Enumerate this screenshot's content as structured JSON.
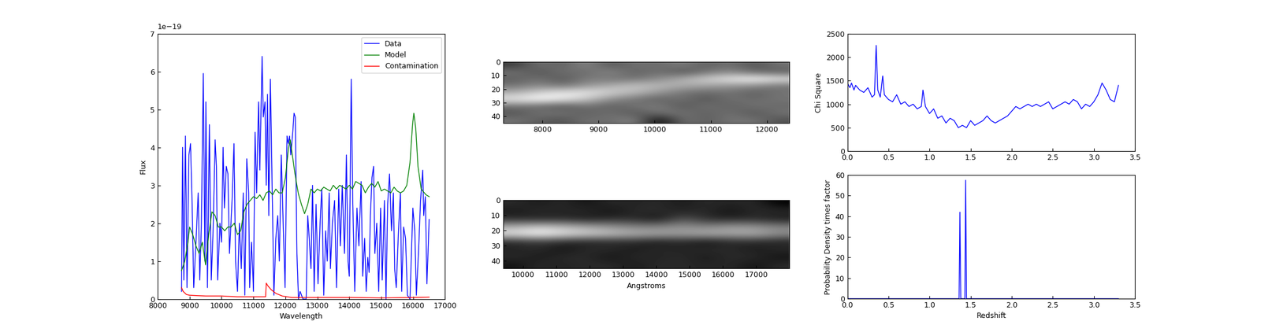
{
  "chart_data": [
    {
      "type": "line",
      "xlabel": "Wavelength",
      "ylabel": "Flux",
      "annotations": [
        {
          "text": "1e−19"
        }
      ],
      "xlim": [
        8000,
        17000
      ],
      "xticks": [
        8000,
        9000,
        10000,
        11000,
        12000,
        13000,
        14000,
        15000,
        16000,
        17000
      ],
      "ylim": [
        0,
        7
      ],
      "yticks": [
        0,
        1,
        2,
        3,
        4,
        5,
        6,
        7
      ],
      "legend": "upper right",
      "series": [
        {
          "name": "Data",
          "color": "#0000ff",
          "x": [
            8750,
            8780,
            8820,
            8870,
            8920,
            8980,
            9030,
            9080,
            9130,
            9200,
            9270,
            9320,
            9370,
            9430,
            9480,
            9510,
            9560,
            9620,
            9680,
            9740,
            9800,
            9840,
            9880,
            9950,
            10000,
            10050,
            10090,
            10150,
            10200,
            10250,
            10330,
            10390,
            10440,
            10500,
            10560,
            10620,
            10680,
            10730,
            10790,
            10850,
            10880,
            10940,
            11000,
            11050,
            11100,
            11160,
            11200,
            11270,
            11310,
            11360,
            11400,
            11440,
            11480,
            11530,
            11580,
            11640,
            11700,
            11760,
            11810,
            11870,
            11930,
            11990,
            12050,
            12090,
            12130,
            12170,
            12230,
            12270,
            12310,
            12360,
            12410,
            12460,
            12550,
            12650,
            12700,
            12760,
            12800,
            12850,
            12900,
            12960,
            13020,
            13090,
            13140,
            13200,
            13260,
            13310,
            13370,
            13410,
            13470,
            13540,
            13600,
            13670,
            13720,
            13780,
            13850,
            13910,
            13960,
            14000,
            14060,
            14110,
            14170,
            14240,
            14300,
            14370,
            14420,
            14480,
            14530,
            14580,
            14620,
            14660,
            14710,
            14760,
            14800,
            14860,
            14920,
            14980,
            15030,
            15100,
            15150,
            15200,
            15260,
            15320,
            15380,
            15420,
            15470,
            15540,
            15600,
            15640,
            15700,
            15760,
            15820,
            15900,
            15990,
            16050,
            16100,
            16170,
            16230,
            16300,
            16330,
            16380,
            16430,
            16500
          ],
          "values": [
            0.2,
            4.0,
            0.5,
            4.3,
            0.3,
            3.8,
            4.1,
            2.5,
            0.3,
            1.5,
            2.8,
            0.5,
            2.0,
            5.95,
            1.0,
            5.2,
            0.3,
            4.6,
            0.5,
            1.9,
            4.2,
            3.5,
            0.5,
            2.0,
            1.5,
            4.0,
            2.4,
            3.5,
            3.3,
            1.2,
            2.6,
            4.1,
            1.0,
            0.2,
            2.0,
            0.8,
            2.8,
            0.1,
            3.7,
            2.8,
            0.3,
            1.5,
            0.2,
            4.4,
            2.8,
            5.2,
            3.4,
            6.4,
            4.8,
            5.2,
            3.0,
            5.4,
            2.2,
            5.8,
            3.2,
            0.1,
            1.6,
            2.2,
            1.0,
            3.8,
            2.0,
            0.3,
            4.3,
            4.1,
            4.3,
            3.8,
            4.4,
            4.9,
            4.8,
            1.2,
            0.0,
            0.2,
            0.0,
            0.0,
            2.2,
            1.4,
            0.8,
            3.0,
            0.2,
            2.5,
            0.4,
            2.1,
            2.9,
            0.1,
            1.8,
            1.0,
            2.8,
            0.8,
            2.0,
            2.6,
            0.3,
            2.9,
            1.4,
            3.0,
            1.2,
            3.8,
            1.0,
            0.6,
            5.8,
            2.5,
            0.2,
            2.4,
            1.4,
            3.1,
            0.6,
            1.6,
            0.2,
            1.1,
            0.7,
            2.2,
            3.2,
            3.5,
            1.2,
            2.0,
            0.2,
            2.4,
            0.5,
            2.6,
            0.0,
            2.5,
            3.3,
            1.8,
            2.8,
            0.8,
            0.3,
            1.8,
            2.8,
            0.2,
            1.9,
            1.6,
            0.1,
            0.0,
            2.4,
            1.8,
            0.1,
            1.3,
            2.6,
            3.4,
            2.2,
            2.7,
            0.4,
            2.1
          ]
        },
        {
          "name": "Model",
          "color": "#008000",
          "x": [
            8750,
            8850,
            8950,
            9000,
            9100,
            9200,
            9300,
            9400,
            9500,
            9600,
            9700,
            9800,
            9900,
            10000,
            10100,
            10200,
            10300,
            10400,
            10500,
            10600,
            10700,
            10800,
            10900,
            11000,
            11100,
            11200,
            11300,
            11400,
            11500,
            11600,
            11700,
            11800,
            11900,
            12000,
            12100,
            12150,
            12200,
            12300,
            12400,
            12500,
            12600,
            12700,
            12800,
            12900,
            13000,
            13100,
            13200,
            13300,
            13400,
            13500,
            13600,
            13700,
            13800,
            13900,
            14000,
            14100,
            14200,
            14300,
            14400,
            14500,
            14600,
            14700,
            14800,
            14900,
            15000,
            15100,
            15200,
            15300,
            15400,
            15500,
            15600,
            15700,
            15800,
            15900,
            15980,
            16020,
            16080,
            16150,
            16250,
            16400,
            16500
          ],
          "values": [
            0.75,
            1.0,
            1.5,
            1.9,
            1.7,
            1.4,
            1.2,
            1.5,
            0.9,
            1.7,
            2.3,
            2.2,
            1.9,
            1.9,
            1.8,
            1.9,
            1.9,
            2.0,
            1.7,
            1.8,
            2.3,
            2.5,
            2.6,
            2.7,
            2.65,
            2.75,
            2.6,
            2.8,
            2.85,
            2.75,
            2.9,
            2.8,
            2.8,
            3.2,
            4.0,
            4.2,
            3.9,
            3.3,
            2.8,
            2.5,
            2.25,
            2.5,
            2.9,
            2.8,
            2.9,
            2.85,
            2.95,
            2.9,
            2.85,
            3.0,
            2.9,
            3.0,
            2.95,
            2.9,
            3.0,
            2.9,
            3.1,
            3.05,
            3.0,
            2.8,
            2.95,
            3.05,
            2.95,
            3.1,
            2.85,
            2.9,
            2.85,
            2.8,
            2.95,
            2.85,
            2.8,
            2.85,
            3.0,
            3.6,
            4.6,
            4.9,
            4.5,
            3.5,
            2.9,
            2.75,
            2.7
          ]
        },
        {
          "name": "Contamination",
          "color": "#ff0000",
          "x": [
            8750,
            8800,
            8900,
            9000,
            9500,
            10000,
            10500,
            11000,
            11380,
            11400,
            11450,
            11550,
            11700,
            11900,
            12200,
            13000,
            14000,
            15000,
            16000,
            16500
          ],
          "values": [
            0.3,
            0.2,
            0.12,
            0.1,
            0.08,
            0.08,
            0.06,
            0.06,
            0.06,
            0.42,
            0.35,
            0.25,
            0.15,
            0.08,
            0.04,
            0.04,
            0.04,
            0.03,
            0.04,
            0.05
          ]
        }
      ]
    },
    {
      "type": "heatmap",
      "xlim": [
        7300,
        12400
      ],
      "xticks": [
        8000,
        9000,
        10000,
        11000,
        12000
      ],
      "ylim": [
        45,
        0
      ],
      "yticks": [
        0,
        10,
        20,
        30,
        40
      ],
      "cells": [
        [
          0.45,
          0.5,
          0.48,
          0.52,
          0.47,
          0.5,
          0.49,
          0.51,
          0.48,
          0.5,
          0.47,
          0.5
        ],
        [
          0.5,
          0.47,
          0.5,
          0.49,
          0.52,
          0.48,
          0.5,
          0.47,
          0.5,
          0.52,
          0.49,
          0.48
        ],
        [
          0.48,
          0.5,
          0.47,
          0.51,
          0.5,
          0.5,
          0.52,
          0.55,
          0.58,
          0.6,
          0.62,
          0.6
        ],
        [
          0.5,
          0.52,
          0.5,
          0.53,
          0.55,
          0.57,
          0.56,
          0.55,
          0.54,
          0.53,
          0.52,
          0.5
        ],
        [
          0.55,
          0.58,
          0.6,
          0.6,
          0.58,
          0.56,
          0.53,
          0.5,
          0.49,
          0.5,
          0.48,
          0.5
        ],
        [
          0.6,
          0.62,
          0.6,
          0.57,
          0.52,
          0.5,
          0.48,
          0.5,
          0.47,
          0.5,
          0.49,
          0.5
        ],
        [
          0.5,
          0.49,
          0.47,
          0.5,
          0.48,
          0.5,
          0.51,
          0.47,
          0.5,
          0.48,
          0.5,
          0.49
        ],
        [
          0.47,
          0.5,
          0.5,
          0.48,
          0.5,
          0.47,
          0.5,
          0.5,
          0.48,
          0.5,
          0.47,
          0.5
        ],
        [
          0.5,
          0.48,
          0.47,
          0.5,
          0.49,
          0.52,
          0.4,
          0.5,
          0.48,
          0.5,
          0.5,
          0.47
        ]
      ]
    },
    {
      "type": "heatmap",
      "xlabel": "Angstroms",
      "xlim": [
        9400,
        18000
      ],
      "xticks": [
        10000,
        11000,
        12000,
        13000,
        14000,
        15000,
        16000,
        17000
      ],
      "ylim": [
        45,
        0
      ],
      "yticks": [
        0,
        10,
        20,
        30,
        40
      ],
      "cells": [
        [
          0.5,
          0.48,
          0.5,
          0.47,
          0.5,
          0.49,
          0.5,
          0.48,
          0.5,
          0.49,
          0.5,
          0.45
        ],
        [
          0.48,
          0.5,
          0.49,
          0.5,
          0.47,
          0.5,
          0.5,
          0.49,
          0.5,
          0.47,
          0.5,
          0.5
        ],
        [
          0.5,
          0.49,
          0.5,
          0.48,
          0.5,
          0.5,
          0.47,
          0.55,
          0.5,
          0.49,
          0.5,
          0.48
        ],
        [
          0.65,
          0.68,
          0.66,
          0.64,
          0.62,
          0.6,
          0.6,
          0.62,
          0.6,
          0.63,
          0.62,
          0.6
        ],
        [
          0.72,
          0.75,
          0.72,
          0.7,
          0.68,
          0.66,
          0.65,
          0.64,
          0.66,
          0.65,
          0.66,
          0.62
        ],
        [
          0.5,
          0.52,
          0.5,
          0.49,
          0.5,
          0.5,
          0.48,
          0.5,
          0.47,
          0.5,
          0.5,
          0.49
        ],
        [
          0.49,
          0.5,
          0.47,
          0.5,
          0.5,
          0.48,
          0.5,
          0.49,
          0.5,
          0.5,
          0.48,
          0.5
        ],
        [
          0.5,
          0.48,
          0.5,
          0.5,
          0.47,
          0.5,
          0.49,
          0.5,
          0.48,
          0.5,
          0.5,
          0.47
        ],
        [
          0.47,
          0.5,
          0.49,
          0.5,
          0.5,
          0.48,
          0.5,
          0.5,
          0.49,
          0.5,
          0.47,
          0.5
        ]
      ]
    },
    {
      "type": "line",
      "ylabel": "Chi Square",
      "xlim": [
        0,
        3.5
      ],
      "xticks": [
        {
          "value": 0,
          "label": "0.0"
        },
        0.5,
        {
          "value": 1,
          "label": "1.0"
        },
        1.5,
        {
          "value": 2,
          "label": "2.0"
        },
        2.5,
        {
          "value": 3,
          "label": "3.0"
        },
        3.5
      ],
      "ylim": [
        0,
        2500
      ],
      "yticks": [
        0,
        500,
        1000,
        1500,
        2000,
        2500
      ],
      "series": [
        {
          "color": "#0000ff",
          "x": [
            0.0,
            0.03,
            0.05,
            0.08,
            0.1,
            0.15,
            0.2,
            0.25,
            0.3,
            0.33,
            0.35,
            0.37,
            0.4,
            0.43,
            0.45,
            0.5,
            0.55,
            0.6,
            0.65,
            0.7,
            0.75,
            0.8,
            0.85,
            0.9,
            0.92,
            0.95,
            1.0,
            1.05,
            1.1,
            1.15,
            1.2,
            1.25,
            1.3,
            1.35,
            1.4,
            1.45,
            1.5,
            1.55,
            1.6,
            1.65,
            1.7,
            1.75,
            1.8,
            1.85,
            1.9,
            1.95,
            2.0,
            2.05,
            2.1,
            2.15,
            2.2,
            2.25,
            2.3,
            2.35,
            2.4,
            2.45,
            2.5,
            2.55,
            2.6,
            2.65,
            2.7,
            2.75,
            2.8,
            2.85,
            2.9,
            2.95,
            3.0,
            3.05,
            3.1,
            3.15,
            3.2,
            3.25,
            3.3
          ],
          "values": [
            1450,
            1350,
            1450,
            1300,
            1400,
            1300,
            1250,
            1350,
            1150,
            1200,
            2250,
            1300,
            1150,
            1600,
            1200,
            1100,
            1050,
            1200,
            1000,
            1050,
            950,
            1000,
            900,
            950,
            1300,
            950,
            800,
            900,
            700,
            750,
            600,
            700,
            650,
            500,
            550,
            500,
            650,
            550,
            600,
            650,
            750,
            650,
            600,
            650,
            700,
            750,
            850,
            950,
            900,
            950,
            1000,
            950,
            1000,
            950,
            1000,
            1050,
            900,
            950,
            1000,
            1050,
            1000,
            1100,
            1050,
            900,
            1000,
            950,
            1050,
            1200,
            1450,
            1300,
            1100,
            1050,
            1400
          ]
        }
      ]
    },
    {
      "type": "line",
      "xlabel": "Redshift",
      "ylabel": "Probability Density times factor",
      "xlim": [
        0,
        3.5
      ],
      "xticks": [
        {
          "value": 0,
          "label": "0.0"
        },
        0.5,
        {
          "value": 1,
          "label": "1.0"
        },
        1.5,
        {
          "value": 2,
          "label": "2.0"
        },
        2.5,
        {
          "value": 3,
          "label": "3.0"
        },
        3.5
      ],
      "ylim": [
        0,
        60
      ],
      "yticks": [
        0,
        10,
        20,
        30,
        40,
        50,
        60
      ],
      "series": [
        {
          "color": "#0000ff",
          "x": [
            0.0,
            1.36,
            1.37,
            1.38,
            1.43,
            1.44,
            1.45,
            3.3
          ],
          "values": [
            0,
            0,
            42,
            0,
            0,
            57.5,
            0,
            0
          ]
        }
      ]
    }
  ]
}
